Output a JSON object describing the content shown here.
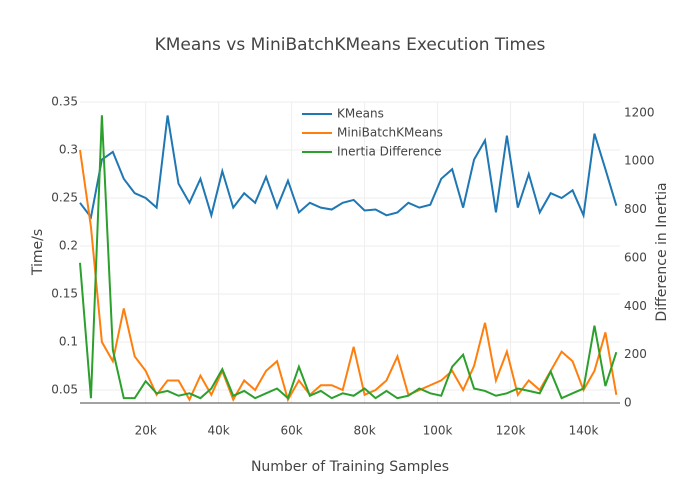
{
  "chart_data": {
    "type": "line",
    "title": "KMeans vs MiniBatchKMeans Execution Times",
    "x_label": "Number of Training Samples",
    "y_label": "Time/s",
    "y2_label": "Difference in Inertia",
    "x": [
      2000,
      5000,
      8000,
      11000,
      14000,
      17000,
      20000,
      23000,
      26000,
      29000,
      32000,
      35000,
      38000,
      41000,
      44000,
      47000,
      50000,
      53000,
      56000,
      59000,
      62000,
      65000,
      68000,
      71000,
      74000,
      77000,
      80000,
      83000,
      86000,
      89000,
      92000,
      95000,
      98000,
      101000,
      104000,
      107000,
      110000,
      113000,
      116000,
      119000,
      122000,
      125000,
      128000,
      131000,
      134000,
      137000,
      140000,
      143000,
      146000,
      149000
    ],
    "series": [
      {
        "name": "KMeans",
        "color": "#1f77b4",
        "values": [
          0.245,
          0.23,
          0.29,
          0.298,
          0.27,
          0.255,
          0.25,
          0.24,
          0.336,
          0.265,
          0.245,
          0.27,
          0.232,
          0.278,
          0.24,
          0.255,
          0.245,
          0.272,
          0.24,
          0.268,
          0.235,
          0.245,
          0.24,
          0.238,
          0.245,
          0.248,
          0.237,
          0.238,
          0.232,
          0.235,
          0.245,
          0.24,
          0.243,
          0.27,
          0.28,
          0.24,
          0.29,
          0.31,
          0.235,
          0.315,
          0.24,
          0.275,
          0.235,
          0.255,
          0.25,
          0.258,
          0.232,
          0.317,
          0.28,
          0.242
        ]
      },
      {
        "name": "MiniBatchKMeans",
        "color": "#ff7f0e",
        "values": [
          0.3,
          0.22,
          0.1,
          0.08,
          0.135,
          0.085,
          0.07,
          0.045,
          0.06,
          0.06,
          0.04,
          0.065,
          0.045,
          0.07,
          0.04,
          0.06,
          0.05,
          0.07,
          0.08,
          0.04,
          0.06,
          0.045,
          0.055,
          0.055,
          0.05,
          0.095,
          0.045,
          0.05,
          0.06,
          0.085,
          0.045,
          0.05,
          0.055,
          0.06,
          0.07,
          0.05,
          0.075,
          0.12,
          0.06,
          0.09,
          0.045,
          0.06,
          0.05,
          0.07,
          0.09,
          0.08,
          0.05,
          0.07,
          0.11,
          0.045
        ]
      },
      {
        "name": "Inertia Difference",
        "color": "#2ca02c",
        "axis": "y2",
        "values": [
          580,
          20,
          1190,
          220,
          20,
          20,
          90,
          40,
          50,
          30,
          40,
          20,
          60,
          140,
          30,
          50,
          20,
          40,
          60,
          20,
          150,
          30,
          50,
          20,
          40,
          30,
          60,
          20,
          50,
          20,
          30,
          60,
          40,
          30,
          150,
          200,
          60,
          50,
          30,
          40,
          60,
          50,
          40,
          130,
          20,
          40,
          60,
          320,
          70,
          210
        ]
      }
    ],
    "xlim": [
      2000,
      150000
    ],
    "xticks": [
      {
        "value": 20000,
        "label": "20k"
      },
      {
        "value": 40000,
        "label": "40k"
      },
      {
        "value": 60000,
        "label": "60k"
      },
      {
        "value": 80000,
        "label": "80k"
      },
      {
        "value": 100000,
        "label": "100k"
      },
      {
        "value": 120000,
        "label": "120k"
      },
      {
        "value": 140000,
        "label": "140k"
      }
    ],
    "ylim": [
      0.0365,
      0.35
    ],
    "yticks": [
      0.05,
      0.1,
      0.15,
      0.2,
      0.25,
      0.3,
      0.35
    ],
    "y2lim": [
      0,
      1245
    ],
    "y2ticks": [
      0,
      200,
      400,
      600,
      800,
      1000,
      1200
    ],
    "grid": true,
    "legend": "top"
  }
}
